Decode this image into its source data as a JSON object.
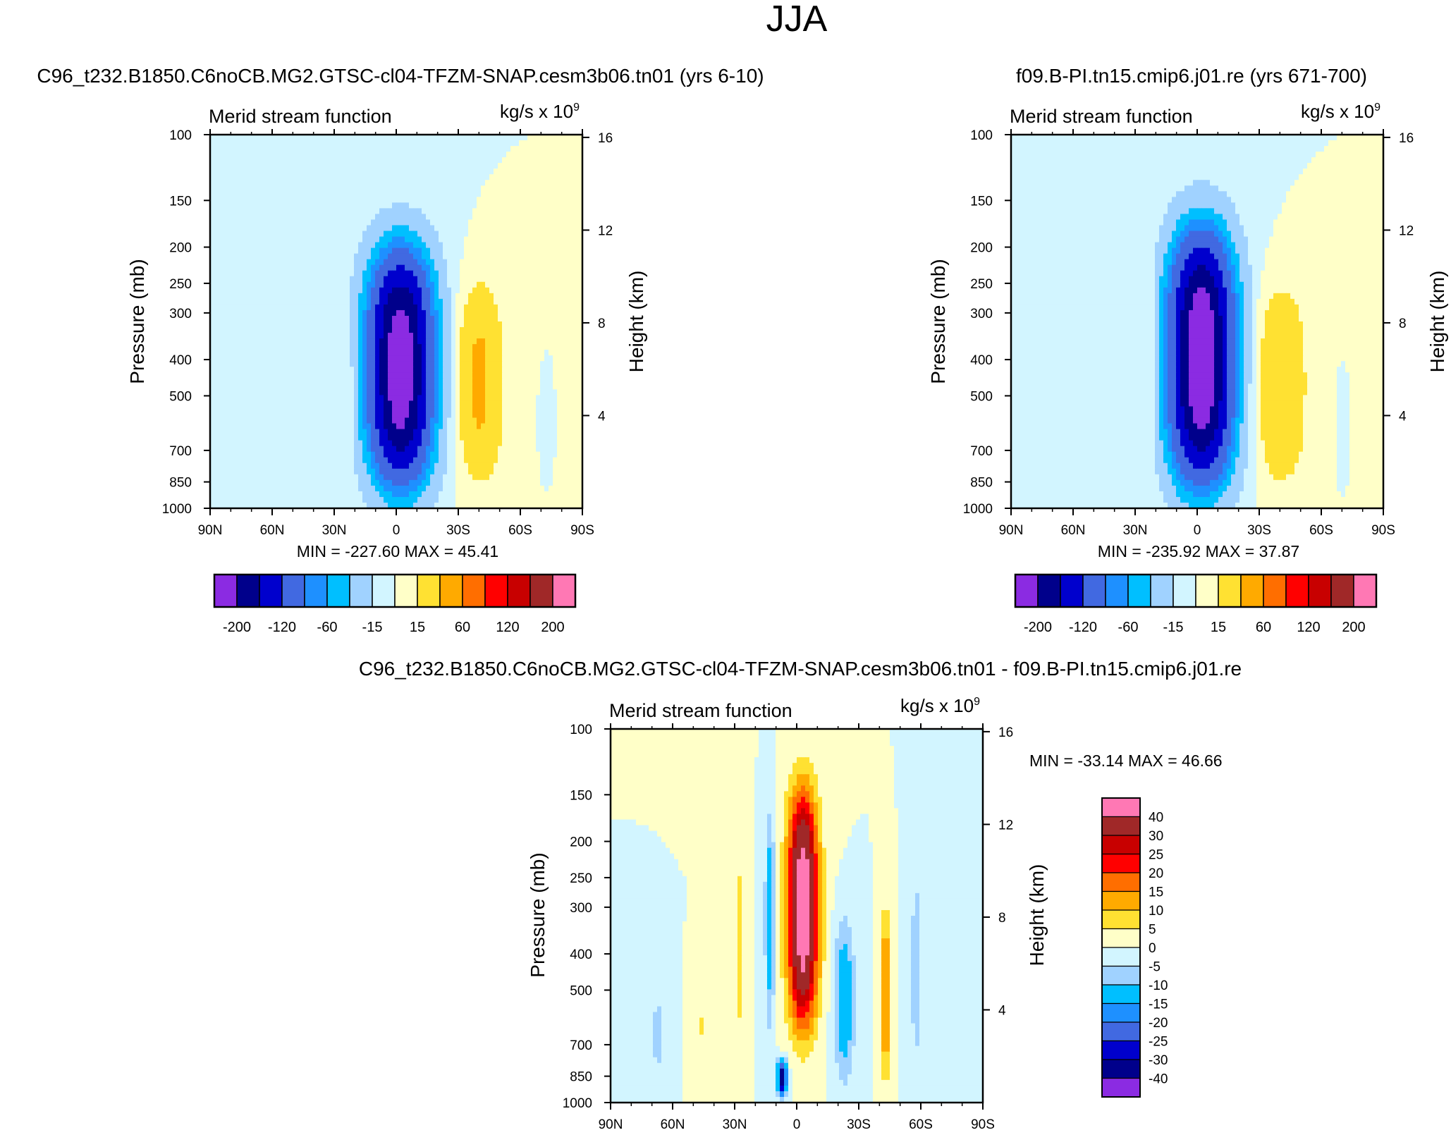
{
  "figure_title": "JJA",
  "colors": {
    "main_levels": [
      "#8b2be2",
      "#00008b",
      "#0000cd",
      "#4169e1",
      "#1e90ff",
      "#00bfff",
      "#a0d2ff",
      "#d2f5ff",
      "#ffffc8",
      "#ffe132",
      "#ffaa00",
      "#ff6e00",
      "#ff0000",
      "#c80000",
      "#a02828",
      "#ff78b4"
    ],
    "diff_levels": [
      "#8b2be2",
      "#00008b",
      "#0000cd",
      "#4169e1",
      "#1e90ff",
      "#00bfff",
      "#a0d2ff",
      "#d2f5ff",
      "#ffffc8",
      "#ffe132",
      "#ffaa00",
      "#ff6e00",
      "#ff0000",
      "#c80000",
      "#a02828",
      "#ff78b4"
    ]
  },
  "chart_data": [
    {
      "type": "heatmap",
      "title": "C96_t232.B1850.C6noCB.MG2.GTSC-cl04-TFZM-SNAP.cesm3b06.tn01 (yrs 6-10)",
      "left_label": "Merid stream function",
      "units_label": "kg/s x 10",
      "units_exp": "9",
      "ylabel": "Pressure (mb)",
      "ylabel_right": "Height (km)",
      "x_ticks": [
        "90N",
        "60N",
        "30N",
        "0",
        "30S",
        "60S",
        "90S"
      ],
      "y_ticks": [
        "100",
        "150",
        "200",
        "250",
        "300",
        "400",
        "500",
        "700",
        "850",
        "1000"
      ],
      "y_right_ticks": [
        "16",
        "12",
        "8",
        "4"
      ],
      "min_max": "MIN = -227.60  MAX =  45.41",
      "colorbar_labels": [
        "-200",
        "-120",
        "-60",
        "-15",
        "15",
        "60",
        "120",
        "200"
      ],
      "levels": [
        -200,
        -160,
        -120,
        -80,
        -60,
        -40,
        -15,
        0,
        15,
        40,
        60,
        80,
        120,
        160,
        200
      ],
      "features": [
        {
          "lat": -2,
          "p_top": 180,
          "p_bot": 980,
          "width_deg": 20,
          "peak": -227.6
        },
        {
          "lat": -40,
          "p_top": 230,
          "p_bot": 920,
          "width_deg": 14,
          "peak": 45.4
        },
        {
          "lat": 22,
          "p_top": 300,
          "p_bot": 950,
          "width_deg": 3,
          "peak": 12
        },
        {
          "lat": -72,
          "p_top": 450,
          "p_bot": 750,
          "width_deg": 2,
          "peak": -10
        }
      ]
    },
    {
      "type": "heatmap",
      "title": "f09.B-PI.tn15.cmip6.j01.re (yrs 671-700)",
      "left_label": "Merid stream function",
      "units_label": "kg/s x 10",
      "units_exp": "9",
      "ylabel": "Pressure (mb)",
      "ylabel_right": "Height (km)",
      "x_ticks": [
        "90N",
        "60N",
        "30N",
        "0",
        "30S",
        "60S",
        "90S"
      ],
      "y_ticks": [
        "100",
        "150",
        "200",
        "250",
        "300",
        "400",
        "500",
        "700",
        "850",
        "1000"
      ],
      "y_right_ticks": [
        "16",
        "12",
        "8",
        "4"
      ],
      "min_max": "MIN = -235.92  MAX =  37.87",
      "colorbar_labels": [
        "-200",
        "-120",
        "-60",
        "-15",
        "15",
        "60",
        "120",
        "200"
      ],
      "levels": [
        -200,
        -160,
        -120,
        -80,
        -60,
        -40,
        -15,
        0,
        15,
        40,
        60,
        80,
        120,
        160,
        200
      ],
      "features": [
        {
          "lat": -2,
          "p_top": 160,
          "p_bot": 980,
          "width_deg": 20,
          "peak": -235.9
        },
        {
          "lat": -40,
          "p_top": 230,
          "p_bot": 950,
          "width_deg": 16,
          "peak": 37.9
        },
        {
          "lat": 22,
          "p_top": 160,
          "p_bot": 950,
          "width_deg": 3,
          "peak": 12
        },
        {
          "lat": -70,
          "p_top": 450,
          "p_bot": 800,
          "width_deg": 2,
          "peak": -10
        }
      ]
    },
    {
      "type": "heatmap",
      "title": "C96_t232.B1850.C6noCB.MG2.GTSC-cl04-TFZM-SNAP.cesm3b06.tn01 - f09.B-PI.tn15.cmip6.j01.re",
      "left_label": "Merid stream function",
      "units_label": "kg/s x 10",
      "units_exp": "9",
      "ylabel": "Pressure (mb)",
      "ylabel_right": "Height (km)",
      "x_ticks": [
        "90N",
        "60N",
        "30N",
        "0",
        "30S",
        "60S",
        "90S"
      ],
      "y_ticks": [
        "100",
        "150",
        "200",
        "250",
        "300",
        "400",
        "500",
        "700",
        "850",
        "1000"
      ],
      "y_right_ticks": [
        "16",
        "12",
        "8",
        "4"
      ],
      "min_max": "MIN = -33.14  MAX =  46.66",
      "colorbar_labels": [
        "40",
        "30",
        "25",
        "20",
        "15",
        "10",
        "5",
        "0",
        "-5",
        "-10",
        "-15",
        "-20",
        "-25",
        "-30",
        "-40"
      ],
      "levels": [
        -40,
        -30,
        -25,
        -20,
        -15,
        -10,
        -5,
        0,
        5,
        10,
        15,
        20,
        25,
        30,
        40
      ],
      "features": [
        {
          "lat": -3,
          "p_top": 130,
          "p_bot": 700,
          "width_deg": 9,
          "peak": 46.7
        },
        {
          "lat": 7,
          "p_top": 750,
          "p_bot": 980,
          "width_deg": 3,
          "peak": -33.1
        },
        {
          "lat": 13,
          "p_top": 150,
          "p_bot": 700,
          "width_deg": 3,
          "peak": -14
        },
        {
          "lat": -23,
          "p_top": 300,
          "p_bot": 950,
          "width_deg": 6,
          "peak": -15
        },
        {
          "lat": -43,
          "p_top": 280,
          "p_bot": 950,
          "width_deg": 3,
          "peak": 16
        },
        {
          "lat": -58,
          "p_top": 220,
          "p_bot": 900,
          "width_deg": 4,
          "peak": -8
        },
        {
          "lat": 28,
          "p_top": 180,
          "p_bot": 800,
          "width_deg": 3,
          "peak": 7
        },
        {
          "lat": 47,
          "p_top": 480,
          "p_bot": 800,
          "width_deg": 3,
          "peak": 6
        },
        {
          "lat": 67,
          "p_top": 480,
          "p_bot": 900,
          "width_deg": 4,
          "peak": -7
        }
      ]
    }
  ]
}
